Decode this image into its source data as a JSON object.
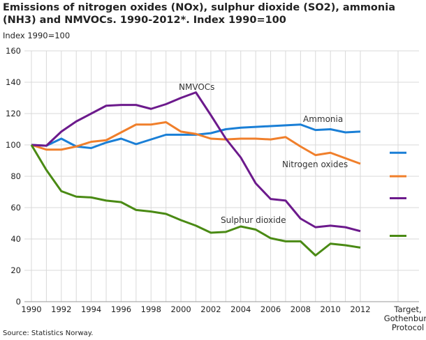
{
  "chart_data": {
    "type": "line",
    "title": "Emissions of nitrogen oxides (NOx), sulphur dioxide (SO2), ammonia (NH3) and NMVOCs. 1990-2012*. Index 1990=100",
    "ylabel": "Index 1990=100",
    "source": "Source: Statistics Norway.",
    "ylim": [
      0,
      160
    ],
    "yticks": [
      0,
      20,
      40,
      60,
      80,
      100,
      120,
      140,
      160
    ],
    "xticks": [
      "1990",
      "1992",
      "1994",
      "1996",
      "1998",
      "2000",
      "2002",
      "2004",
      "2006",
      "2008",
      "2010",
      "2012"
    ],
    "target_label": [
      "Target,",
      "Gothenburg",
      "Protocol"
    ],
    "grid": true,
    "x": [
      1990,
      1991,
      1992,
      1993,
      1994,
      1995,
      1996,
      1997,
      1998,
      1999,
      2000,
      2001,
      2002,
      2003,
      2004,
      2005,
      2006,
      2007,
      2008,
      2009,
      2010,
      2011,
      2012
    ],
    "series": [
      {
        "name": "Ammonia",
        "color": "#1a7fd6",
        "target": 95,
        "values": [
          100,
          99.5,
          104,
          99,
          98,
          101.5,
          104,
          100.5,
          103.5,
          106.5,
          106.5,
          106.5,
          107.5,
          110,
          111,
          111.5,
          112,
          112.5,
          113,
          109.5,
          110,
          108,
          108.5
        ]
      },
      {
        "name": "Nitrogen oxides",
        "color": "#f07f2b",
        "target": 80,
        "values": [
          100,
          97,
          97,
          99,
          102,
          103,
          108,
          113,
          113,
          114.5,
          108.5,
          107,
          104,
          103.5,
          104,
          104,
          103.5,
          105,
          99,
          93.5,
          95,
          91.5,
          88
        ]
      },
      {
        "name": "NMVOCs",
        "color": "#6c1a8c",
        "target": 66,
        "values": [
          100,
          99.5,
          108.5,
          115,
          120,
          125,
          125.5,
          125.5,
          123,
          126,
          130,
          133.5,
          119,
          104,
          92,
          75.5,
          65.5,
          64.5,
          53,
          47.5,
          48.5,
          47.5,
          45
        ]
      },
      {
        "name": "Sulphur dioxide",
        "color": "#4a8a14",
        "target": 42,
        "values": [
          100,
          84,
          70.5,
          67,
          66.5,
          64.5,
          63.5,
          58.5,
          57.5,
          56,
          52,
          48.5,
          44,
          44.5,
          48,
          46,
          40.5,
          38.5,
          38.5,
          29.5,
          37,
          36,
          34.5
        ]
      }
    ]
  }
}
